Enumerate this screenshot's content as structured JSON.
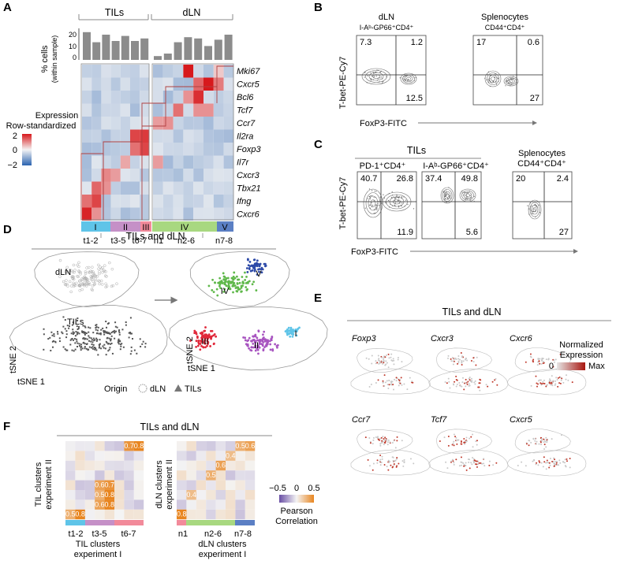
{
  "figure": {
    "panels": {
      "A": "A",
      "B": "B",
      "C": "C",
      "D": "D",
      "E": "E",
      "F": "F"
    },
    "a": {
      "group_tils": "TILs",
      "group_dln": "dLN",
      "ylabel_line1": "% cells",
      "ylabel_line2": "(within sample)",
      "yticks": [
        "20",
        "10",
        "0"
      ],
      "genes": [
        "Mki67",
        "Cxcr5",
        "Bcl6",
        "Tcf7",
        "Ccr7",
        "Il2ra",
        "Foxp3",
        "Il7r",
        "Cxcr3",
        "Tbx21",
        "Ifng",
        "Cxcr6"
      ],
      "legend_title1": "Expression",
      "legend_title2": "Row-standardized",
      "legend_ticks": [
        "2",
        "0",
        "−2"
      ],
      "clusters": [
        "I",
        "II",
        "III",
        "IV",
        "V"
      ],
      "cluster_colors": [
        "#5fc4e8",
        "#c590c7",
        "#f28a9a",
        "#a8d880",
        "#5b7fc4"
      ],
      "sample_labels": [
        "t1-2",
        "t3-5",
        "t6-7",
        "n1",
        "n2-6",
        "n7-8"
      ]
    },
    "b": {
      "plot1_title1": "dLN",
      "plot1_title2": "I-Aᵇ-GP66⁺CD4⁺",
      "plot1_q": [
        "7.3",
        "1.2",
        "12.5"
      ],
      "plot2_title1": "Splenocytes",
      "plot2_title2": "CD44⁺CD4⁺",
      "plot2_q": [
        "17",
        "0.6",
        "27"
      ],
      "ylabel": "T-bet-PE-Cy7",
      "xlabel": "FoxP3-FITC"
    },
    "c": {
      "group_title": "TILs",
      "plot1_title": "PD-1⁺CD4⁺",
      "plot1_q": [
        "40.7",
        "26.8",
        "11.9"
      ],
      "plot2_title": "I-Aᵇ-GP66⁺CD4⁺",
      "plot2_q": [
        "37.4",
        "49.8",
        "5.6"
      ],
      "plot3_title1": "Splenocytes",
      "plot3_title2": "CD44⁺CD4⁺",
      "plot3_q": [
        "20",
        "2.4",
        "27"
      ],
      "ylabel": "T-bet-PE-Cy7",
      "xlabel": "FoxP3-FITC"
    },
    "d": {
      "title": "TILs and dLN",
      "dln_label": "dLN",
      "tils_label": "TILs",
      "tsne1": "tSNE 1",
      "tsne2": "tSNE 2",
      "cluster_labels": [
        "I",
        "II",
        "III",
        "IV",
        "V"
      ],
      "origin_label": "Origin",
      "legend_dln": "dLN",
      "legend_tils": "TILs"
    },
    "e": {
      "title": "TILs and dLN",
      "genes": [
        "Foxp3",
        "Cxcr3",
        "Cxcr6",
        "Ccr7",
        "Tcf7",
        "Cxcr5"
      ],
      "legend_title1": "Normalized",
      "legend_title2": "Expression",
      "legend_min": "0",
      "legend_max": "Max"
    },
    "f": {
      "title": "TILs and dLN",
      "til_ylabel1": "TIL clusters",
      "til_ylabel2": "experiment II",
      "til_xlabel1": "TIL clusters",
      "til_xlabel2": "experiment I",
      "til_xticks": [
        "t1-2",
        "t3-5",
        "t6-7"
      ],
      "dln_ylabel1": "dLN clusters",
      "dln_ylabel2": "experiment II",
      "dln_xlabel1": "dLN clusters",
      "dln_xlabel2": "experiment I",
      "dln_xticks": [
        "n1",
        "n2-6",
        "n7-8"
      ],
      "til_values": [
        "0.7",
        "0.8",
        "0.6",
        "0.7",
        "0.5",
        "0.8",
        "0.6",
        "0.8",
        "0.5",
        "0.8"
      ],
      "dln_values": [
        "0.5",
        "0.6",
        "0.4",
        "0.6",
        "0.5",
        "0.4",
        "0.8"
      ],
      "legend_ticks": [
        "−0.5",
        "0",
        "0.5"
      ],
      "legend_title1": "Pearson",
      "legend_title2": "Correlation"
    }
  },
  "chart_data": [
    {
      "type": "bar",
      "title": "",
      "ylabel": "% cells (within sample)",
      "categories": [
        "t1",
        "t2",
        "t3",
        "t4",
        "t5",
        "t6",
        "t7",
        "n1",
        "n2",
        "n3",
        "n4",
        "n5",
        "n6",
        "n7",
        "n8"
      ],
      "values": [
        22,
        14,
        20,
        15,
        19,
        15,
        17,
        3,
        5,
        14,
        18,
        17,
        11,
        16,
        20
      ],
      "ylim": [
        0,
        25
      ]
    },
    {
      "type": "heatmap",
      "title": "",
      "rows": [
        "Mki67",
        "Cxcr5",
        "Bcl6",
        "Tcf7",
        "Ccr7",
        "Il2ra",
        "Foxp3",
        "Il7r",
        "Cxcr3",
        "Tbx21",
        "Ifng",
        "Cxcr6"
      ],
      "columns": [
        "t1",
        "t2",
        "t3",
        "t4",
        "t5",
        "t6",
        "t7",
        "n1",
        "n2",
        "n3",
        "n4",
        "n5",
        "n6",
        "n7",
        "n8"
      ],
      "scale": [
        -2,
        2
      ]
    }
  ]
}
